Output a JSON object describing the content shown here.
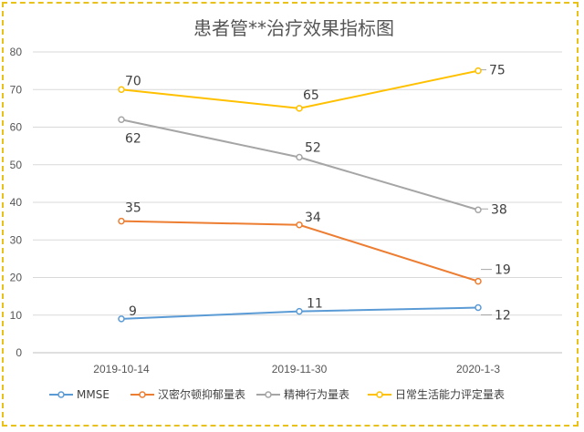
{
  "chart_data": {
    "type": "line",
    "title": "患者管**治疗效果指标图",
    "categories": [
      "2019-10-14",
      "2019-11-30",
      "2020-1-3"
    ],
    "ylim": [
      0,
      80
    ],
    "yticks": [
      0,
      10,
      20,
      30,
      40,
      50,
      60,
      70,
      80
    ],
    "grid": true,
    "legend_position": "bottom",
    "series": [
      {
        "name": "MMSE",
        "values": [
          9,
          11,
          12
        ],
        "color": "#5b9bd5"
      },
      {
        "name": "汉密尔顿抑郁量表",
        "values": [
          35,
          34,
          19
        ],
        "color": "#ed7d31"
      },
      {
        "name": "精神行为量表",
        "values": [
          62,
          52,
          38
        ],
        "color": "#a5a5a5"
      },
      {
        "name": "日常生活能力评定量表",
        "values": [
          70,
          65,
          75
        ],
        "color": "#ffc000"
      }
    ]
  }
}
